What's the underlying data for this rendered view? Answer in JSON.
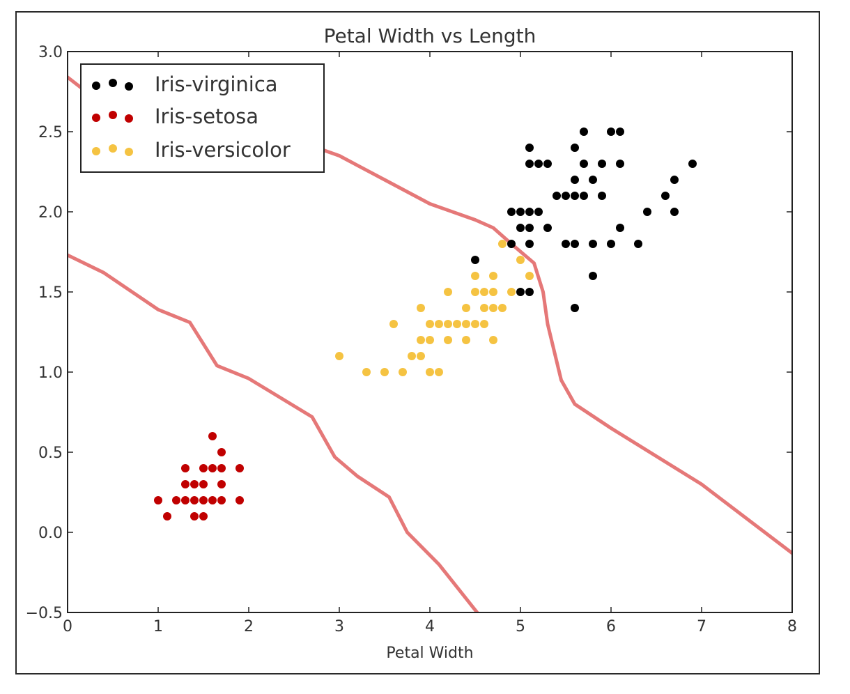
{
  "chart_data": {
    "type": "scatter",
    "title": "Petal Width vs Length",
    "xlabel": "Petal Width",
    "ylabel": "",
    "xlim": [
      0,
      8
    ],
    "ylim": [
      -0.5,
      3.0
    ],
    "xticks": [
      "0",
      "1",
      "2",
      "3",
      "4",
      "5",
      "6",
      "7",
      "8"
    ],
    "yticks": [
      "−0.5",
      "0.0",
      "0.5",
      "1.0",
      "1.5",
      "2.0",
      "2.5",
      "3.0"
    ],
    "grid": false,
    "legend_position": "top-left",
    "series": [
      {
        "name": "Iris-virginica",
        "color": "#000000",
        "points": [
          [
            5.1,
            2.4
          ],
          [
            5.7,
            2.5
          ],
          [
            6.0,
            2.5
          ],
          [
            6.1,
            2.5
          ],
          [
            5.1,
            2.3
          ],
          [
            5.2,
            2.3
          ],
          [
            5.3,
            2.3
          ],
          [
            5.6,
            2.4
          ],
          [
            5.7,
            2.3
          ],
          [
            5.9,
            2.3
          ],
          [
            6.1,
            2.3
          ],
          [
            6.9,
            2.3
          ],
          [
            5.6,
            2.2
          ],
          [
            5.8,
            2.2
          ],
          [
            6.7,
            2.2
          ],
          [
            5.4,
            2.1
          ],
          [
            5.5,
            2.1
          ],
          [
            5.6,
            2.1
          ],
          [
            5.7,
            2.1
          ],
          [
            5.9,
            2.1
          ],
          [
            6.6,
            2.1
          ],
          [
            4.9,
            2.0
          ],
          [
            5.0,
            2.0
          ],
          [
            5.1,
            2.0
          ],
          [
            5.2,
            2.0
          ],
          [
            6.4,
            2.0
          ],
          [
            6.7,
            2.0
          ],
          [
            5.0,
            1.9
          ],
          [
            5.1,
            1.9
          ],
          [
            5.3,
            1.9
          ],
          [
            6.1,
            1.9
          ],
          [
            4.9,
            1.8
          ],
          [
            5.1,
            1.8
          ],
          [
            5.5,
            1.8
          ],
          [
            5.6,
            1.8
          ],
          [
            5.8,
            1.8
          ],
          [
            6.0,
            1.8
          ],
          [
            6.3,
            1.8
          ],
          [
            4.5,
            1.7
          ],
          [
            5.8,
            1.6
          ],
          [
            5.0,
            1.5
          ],
          [
            5.1,
            1.5
          ],
          [
            5.6,
            1.4
          ]
        ]
      },
      {
        "name": "Iris-setosa",
        "color": "#c00000",
        "points": [
          [
            1.6,
            0.6
          ],
          [
            1.7,
            0.5
          ],
          [
            1.3,
            0.4
          ],
          [
            1.5,
            0.4
          ],
          [
            1.6,
            0.4
          ],
          [
            1.7,
            0.4
          ],
          [
            1.9,
            0.4
          ],
          [
            1.3,
            0.3
          ],
          [
            1.4,
            0.3
          ],
          [
            1.5,
            0.3
          ],
          [
            1.7,
            0.3
          ],
          [
            1.0,
            0.2
          ],
          [
            1.2,
            0.2
          ],
          [
            1.3,
            0.2
          ],
          [
            1.4,
            0.2
          ],
          [
            1.5,
            0.2
          ],
          [
            1.6,
            0.2
          ],
          [
            1.7,
            0.2
          ],
          [
            1.9,
            0.2
          ],
          [
            1.1,
            0.1
          ],
          [
            1.4,
            0.1
          ],
          [
            1.5,
            0.1
          ]
        ]
      },
      {
        "name": "Iris-versicolor",
        "color": "#f5c342",
        "points": [
          [
            4.8,
            1.8
          ],
          [
            5.0,
            1.7
          ],
          [
            4.5,
            1.6
          ],
          [
            4.7,
            1.6
          ],
          [
            5.1,
            1.6
          ],
          [
            4.2,
            1.5
          ],
          [
            4.5,
            1.5
          ],
          [
            4.6,
            1.5
          ],
          [
            4.7,
            1.5
          ],
          [
            4.9,
            1.5
          ],
          [
            3.9,
            1.4
          ],
          [
            4.4,
            1.4
          ],
          [
            4.6,
            1.4
          ],
          [
            4.7,
            1.4
          ],
          [
            4.8,
            1.4
          ],
          [
            3.6,
            1.3
          ],
          [
            4.0,
            1.3
          ],
          [
            4.1,
            1.3
          ],
          [
            4.2,
            1.3
          ],
          [
            4.3,
            1.3
          ],
          [
            4.4,
            1.3
          ],
          [
            4.5,
            1.3
          ],
          [
            4.6,
            1.3
          ],
          [
            3.9,
            1.2
          ],
          [
            4.0,
            1.2
          ],
          [
            4.2,
            1.2
          ],
          [
            4.4,
            1.2
          ],
          [
            4.7,
            1.2
          ],
          [
            3.0,
            1.1
          ],
          [
            3.8,
            1.1
          ],
          [
            3.9,
            1.1
          ],
          [
            3.3,
            1.0
          ],
          [
            3.5,
            1.0
          ],
          [
            3.7,
            1.0
          ],
          [
            4.0,
            1.0
          ],
          [
            4.1,
            1.0
          ]
        ]
      }
    ],
    "boundary_color": "#e06060",
    "boundaries": [
      [
        [
          0,
          2.84
        ],
        [
          0.5,
          2.62
        ],
        [
          1.3,
          2.48
        ],
        [
          2.5,
          2.45
        ],
        [
          3.0,
          2.35
        ],
        [
          3.5,
          2.2
        ],
        [
          4.0,
          2.05
        ],
        [
          4.5,
          1.95
        ],
        [
          4.7,
          1.9
        ],
        [
          4.9,
          1.8
        ],
        [
          5.15,
          1.68
        ],
        [
          5.25,
          1.5
        ],
        [
          5.3,
          1.3
        ],
        [
          5.45,
          0.95
        ],
        [
          5.6,
          0.8
        ],
        [
          6.0,
          0.65
        ],
        [
          7.0,
          0.3
        ],
        [
          8.0,
          -0.13
        ]
      ],
      [
        [
          0,
          1.73
        ],
        [
          0.4,
          1.62
        ],
        [
          1.0,
          1.39
        ],
        [
          1.35,
          1.31
        ],
        [
          1.65,
          1.04
        ],
        [
          2.0,
          0.96
        ],
        [
          2.7,
          0.72
        ],
        [
          2.95,
          0.47
        ],
        [
          3.2,
          0.35
        ],
        [
          3.55,
          0.22
        ],
        [
          3.75,
          0.0
        ],
        [
          4.1,
          -0.2
        ],
        [
          4.55,
          -0.52
        ]
      ]
    ]
  }
}
